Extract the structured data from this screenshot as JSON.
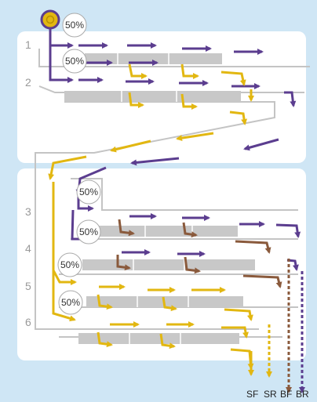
{
  "diagram": {
    "rows": [
      "1",
      "2",
      "3",
      "4",
      "5",
      "6"
    ],
    "bubbles": [
      "50%",
      "50%",
      "50%",
      "50%",
      "50%",
      "50%"
    ],
    "outputs": [
      "SF",
      "SR",
      "BF",
      "BR"
    ],
    "colors": {
      "background": "#cfe6f5",
      "panel": "#ffffff",
      "purple": "#5b3d8f",
      "yellow": "#e2b711",
      "brown": "#8a5a3c",
      "gray": "#c8c8c8",
      "conveyor": "#bdbdbd"
    }
  }
}
